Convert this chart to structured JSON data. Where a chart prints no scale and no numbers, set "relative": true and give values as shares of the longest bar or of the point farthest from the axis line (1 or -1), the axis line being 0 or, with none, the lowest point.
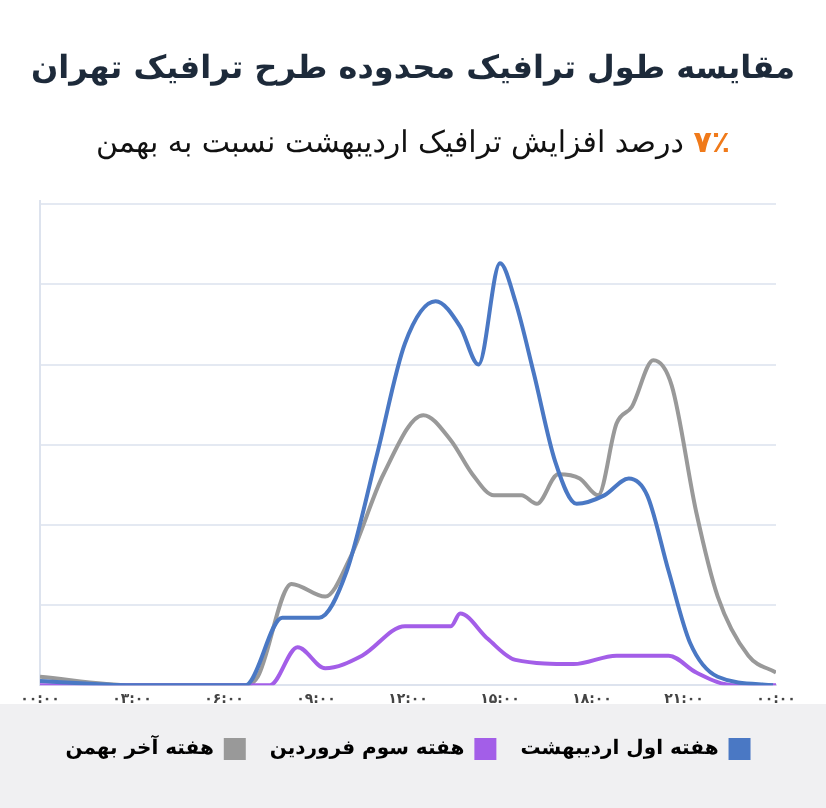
{
  "chart_data": {
    "type": "line",
    "title": "مقایسه طول ترافیک محدوده طرح ترافیک تهران",
    "subtitle": "۷٪ درصد افزایش ترافیک اردیبهشت نسبت به بهمن",
    "relative": true,
    "xlim": [
      0,
      24
    ],
    "xticks": [
      {
        "value": 0,
        "label": "۰۰:۰۰"
      },
      {
        "value": 3,
        "label": "۰۳:۰۰"
      },
      {
        "value": 6,
        "label": "۰۶:۰۰"
      },
      {
        "value": 9,
        "label": "۰۹:۰۰"
      },
      {
        "value": 12,
        "label": "۱۲:۰۰"
      },
      {
        "value": 15,
        "label": "۱۵:۰۰"
      },
      {
        "value": 18,
        "label": "۱۸:۰۰"
      },
      {
        "value": 21,
        "label": "۲۱:۰۰"
      },
      {
        "value": 24,
        "label": "۰۰:۰۰"
      }
    ],
    "grid": "y",
    "legend": "bottom",
    "marker": "none",
    "line_style": "solid",
    "series": [
      {
        "name": "هفته اول اردیبهشت",
        "color": "#4a78c4",
        "x": [
          0,
          3,
          6.7,
          7.9,
          9.1,
          10,
          11,
          11.9,
          12.9,
          13.7,
          14.3,
          15,
          15.5,
          16.1,
          16.8,
          17.5,
          18.4,
          19.2,
          19.8,
          20.5,
          21.2,
          22.1,
          23.9
        ],
        "values": [
          0.01,
          0,
          0,
          0.16,
          0.16,
          0.27,
          0.55,
          0.81,
          0.91,
          0.85,
          0.76,
          1,
          0.91,
          0.74,
          0.53,
          0.43,
          0.45,
          0.49,
          0.45,
          0.27,
          0.1,
          0.02,
          0
        ]
      },
      {
        "name": "هفته سوم فروردین",
        "color": "#a35ee8",
        "x": [
          0,
          3,
          6,
          7.5,
          8.4,
          9.3,
          10.5,
          11.9,
          13.4,
          13.7,
          14.6,
          15.5,
          17.4,
          18.8,
          20.5,
          21.4,
          22.6,
          24
        ],
        "values": [
          0,
          0,
          0,
          0,
          0.09,
          0.04,
          0.07,
          0.14,
          0.14,
          0.17,
          0.11,
          0.06,
          0.05,
          0.07,
          0.07,
          0.03,
          0,
          0
        ]
      },
      {
        "name": "هفته آخر بهمن",
        "color": "#999999",
        "x": [
          0,
          3,
          6.7,
          7.1,
          8.2,
          9.3,
          10.1,
          11.2,
          12.5,
          13.4,
          14.1,
          14.8,
          15.7,
          16.2,
          16.9,
          17.6,
          18.2,
          18.8,
          19.3,
          20,
          20.6,
          21.4,
          22.1,
          23.1,
          24
        ],
        "values": [
          0.02,
          0,
          0,
          0.02,
          0.24,
          0.21,
          0.3,
          0.5,
          0.64,
          0.58,
          0.5,
          0.45,
          0.45,
          0.43,
          0.5,
          0.49,
          0.45,
          0.62,
          0.66,
          0.77,
          0.71,
          0.41,
          0.21,
          0.07,
          0.03
        ]
      }
    ]
  }
}
